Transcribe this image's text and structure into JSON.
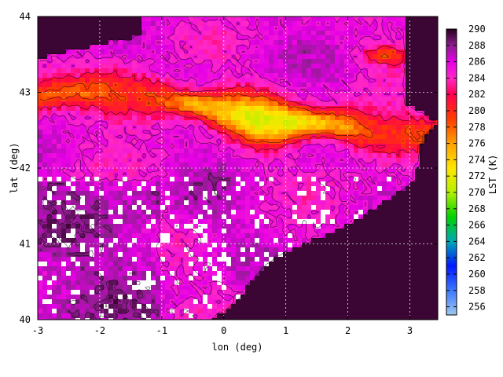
{
  "chart_data": {
    "type": "heatmap",
    "title": "",
    "xlabel": "lon (deg)",
    "ylabel": "lat (deg)",
    "xlim": [
      -3,
      3.45
    ],
    "ylim": [
      40,
      44
    ],
    "x_ticks": [
      -3,
      -2,
      -1,
      0,
      1,
      2,
      3
    ],
    "x_tick_labels": [
      "-3",
      "-2",
      "-1",
      "0",
      "1",
      "2",
      "3"
    ],
    "y_ticks": [
      40,
      41,
      42,
      43,
      44
    ],
    "y_tick_labels": [
      "40",
      "41",
      "42",
      "43",
      "44"
    ],
    "grid": true,
    "colorbar": {
      "label": "LST (K)",
      "range": [
        255,
        290
      ],
      "ticks": [
        256,
        258,
        260,
        262,
        264,
        266,
        268,
        270,
        272,
        274,
        276,
        278,
        280,
        282,
        284,
        286,
        288,
        290
      ],
      "tick_labels": [
        "256",
        "258",
        "260",
        "262",
        "264",
        "266",
        "268",
        "270",
        "272",
        "274",
        "276",
        "278",
        "280",
        "282",
        "284",
        "286",
        "288",
        "290"
      ],
      "colormap": [
        {
          "value": 255,
          "color": "#9ec8f0"
        },
        {
          "value": 258,
          "color": "#3c78ff"
        },
        {
          "value": 261,
          "color": "#0018ff"
        },
        {
          "value": 264,
          "color": "#00a8b4"
        },
        {
          "value": 267,
          "color": "#00d200"
        },
        {
          "value": 270,
          "color": "#b4f000"
        },
        {
          "value": 273,
          "color": "#ffe600"
        },
        {
          "value": 276,
          "color": "#ffa000"
        },
        {
          "value": 279,
          "color": "#ff3c00"
        },
        {
          "value": 282,
          "color": "#ff0050"
        },
        {
          "value": 284,
          "color": "#ff28c8"
        },
        {
          "value": 286,
          "color": "#e600e6"
        },
        {
          "value": 288,
          "color": "#8c1e8c"
        },
        {
          "value": 290,
          "color": "#28001e"
        }
      ]
    },
    "features": {
      "sea_lst_k": 289.6,
      "cold_ridge": [
        {
          "lon": -3.0,
          "lat": 42.95,
          "lst": 280.0
        },
        {
          "lon": -2.5,
          "lat": 43.0,
          "lst": 279.5
        },
        {
          "lon": -2.0,
          "lat": 43.0,
          "lst": 279.0
        },
        {
          "lon": -1.5,
          "lat": 42.95,
          "lst": 279.0
        },
        {
          "lon": -1.0,
          "lat": 42.9,
          "lst": 277.0
        },
        {
          "lon": -0.5,
          "lat": 42.85,
          "lst": 274.5
        },
        {
          "lon": 0.0,
          "lat": 42.75,
          "lst": 274.5
        },
        {
          "lon": 0.5,
          "lat": 42.65,
          "lst": 272.5
        },
        {
          "lon": 1.0,
          "lat": 42.6,
          "lst": 272.5
        },
        {
          "lon": 1.5,
          "lat": 42.6,
          "lst": 273.5
        },
        {
          "lon": 2.0,
          "lat": 42.55,
          "lst": 275.0
        },
        {
          "lon": 2.5,
          "lat": 42.45,
          "lst": 279.0
        }
      ],
      "cold_spot": {
        "lon": 2.6,
        "lat": 43.5,
        "lst": 279.5
      }
    }
  }
}
